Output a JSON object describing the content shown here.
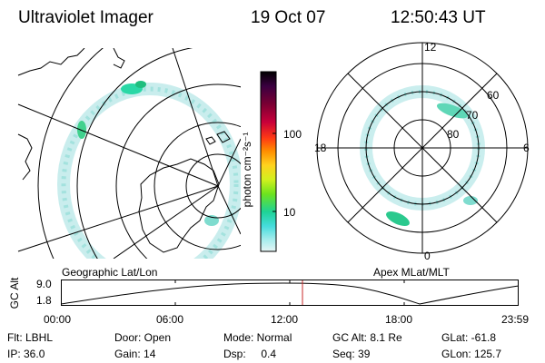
{
  "header": {
    "instrument": "Ultraviolet Imager",
    "date": "19 Oct 07",
    "time": "12:50:43 UT"
  },
  "geographic_panel": {
    "label": "Geographic Lat/Lon"
  },
  "colorbar": {
    "unit_label": "photon cm⁻²s⁻¹",
    "ticks": [
      "100",
      "10"
    ],
    "colors": [
      "#000000",
      "#3a0040",
      "#7a0033",
      "#c8003a",
      "#ff3a14",
      "#ff8c00",
      "#ffd21e",
      "#d2f01e",
      "#6ee31e",
      "#1ed296",
      "#46dcdc",
      "#a0ebeb",
      "#e6f5f5"
    ]
  },
  "apex_panel": {
    "label": "Apex MLat/MLT",
    "mlt_labels": {
      "top": "12",
      "left": "18",
      "right": "6",
      "bottom": "0"
    },
    "mlat_labels": [
      "60",
      "70",
      "80"
    ]
  },
  "altitude_plot": {
    "ylabel": "GC Alt",
    "yticks": [
      "9.0",
      "1.8"
    ],
    "xticks": [
      "00:00",
      "06:00",
      "12:00",
      "18:00",
      "23:59"
    ],
    "current_time_marker": "12:50",
    "marker_color": "#c82828"
  },
  "info": {
    "flt": "Flt: LBHL",
    "ip": "IP: 36.0",
    "door": "Door: Open",
    "gain": "Gain: 14",
    "mode": "Mode: Normal",
    "dsp": "Dsp:     0.4",
    "gcalt": "GC Alt: 8.1 Re",
    "seq": "Seq: 39",
    "glat": "GLat: -61.8",
    "glon": "GLon: 125.7"
  }
}
